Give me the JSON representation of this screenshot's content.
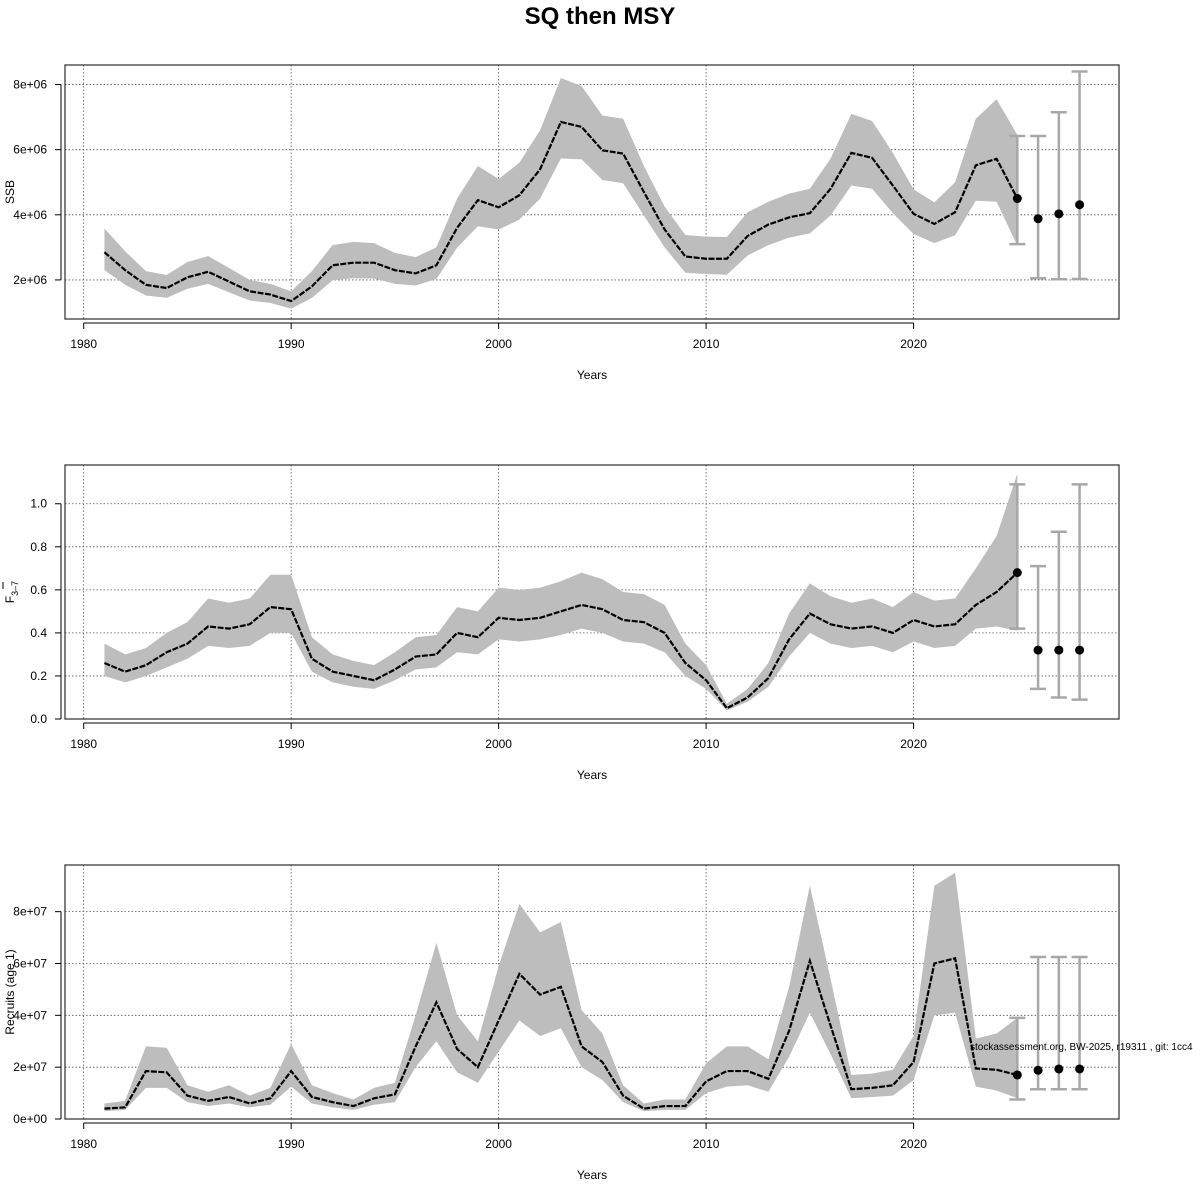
{
  "title": "SQ then MSY",
  "credit": "stockassessment.org, BW-2025, r19311 , git: 1cc4",
  "colors": {
    "band": "#bdbdbd",
    "line": "#000000",
    "errorbar": "#a8a8a8",
    "grid": "#555555"
  },
  "chart_data": [
    {
      "type": "line",
      "ylabel": "SSB",
      "xlabel": "Years",
      "xlim": [
        1980,
        2028
      ],
      "ylim": [
        800000,
        8600000
      ],
      "xticks": [
        1980,
        1990,
        2000,
        2010,
        2020
      ],
      "yticks": [
        2000000,
        4000000,
        6000000,
        8000000
      ],
      "ytick_labels": [
        "2e+06",
        "4e+06",
        "6e+06",
        "8e+06"
      ],
      "grid": true,
      "x": [
        1981,
        1982,
        1983,
        1984,
        1985,
        1986,
        1987,
        1988,
        1989,
        1990,
        1991,
        1992,
        1993,
        1994,
        1995,
        1996,
        1997,
        1998,
        1999,
        2000,
        2001,
        2002,
        2003,
        2004,
        2005,
        2006,
        2007,
        2008,
        2009,
        2010,
        2011,
        2012,
        2013,
        2014,
        2015,
        2016,
        2017,
        2018,
        2019,
        2020,
        2021,
        2022,
        2023,
        2024,
        2025
      ],
      "estimate": [
        2850000,
        2300000,
        1850000,
        1750000,
        2080000,
        2250000,
        1950000,
        1650000,
        1550000,
        1350000,
        1800000,
        2450000,
        2530000,
        2530000,
        2300000,
        2200000,
        2450000,
        3600000,
        4450000,
        4230000,
        4600000,
        5400000,
        6850000,
        6700000,
        5980000,
        5880000,
        4700000,
        3550000,
        2720000,
        2650000,
        2650000,
        3350000,
        3700000,
        3920000,
        4050000,
        4800000,
        5900000,
        5750000,
        4900000,
        4030000,
        3720000,
        4080000,
        5520000,
        5720000,
        4500000
      ],
      "lower": [
        2300000,
        1850000,
        1520000,
        1450000,
        1730000,
        1880000,
        1620000,
        1370000,
        1290000,
        1120000,
        1450000,
        1990000,
        2050000,
        2040000,
        1880000,
        1830000,
        2030000,
        2990000,
        3650000,
        3550000,
        3850000,
        4500000,
        5730000,
        5700000,
        5070000,
        4970000,
        3980000,
        3000000,
        2220000,
        2180000,
        2160000,
        2750000,
        3070000,
        3300000,
        3430000,
        3980000,
        4900000,
        4800000,
        4050000,
        3410000,
        3130000,
        3370000,
        4430000,
        4400000,
        3050000
      ],
      "upper": [
        3580000,
        2880000,
        2270000,
        2150000,
        2550000,
        2730000,
        2370000,
        2000000,
        1880000,
        1650000,
        2270000,
        3070000,
        3170000,
        3130000,
        2830000,
        2700000,
        3000000,
        4500000,
        5500000,
        5100000,
        5600000,
        6600000,
        8200000,
        7950000,
        7050000,
        6950000,
        5500000,
        4250000,
        3380000,
        3330000,
        3320000,
        4080000,
        4400000,
        4650000,
        4800000,
        5730000,
        7100000,
        6880000,
        5900000,
        4780000,
        4380000,
        5000000,
        6950000,
        7550000,
        6450000
      ],
      "projection": {
        "x": [
          2025,
          2026,
          2027,
          2028
        ],
        "median": [
          4500000,
          3880000,
          4030000,
          4310000
        ],
        "lower": [
          3100000,
          2050000,
          2020000,
          2030000
        ],
        "upper": [
          6420000,
          6420000,
          7150000,
          8400000
        ]
      }
    },
    {
      "type": "line",
      "ylabel": "F̅ 3–7",
      "ylabel_main": "F",
      "ylabel_sub": "3–7",
      "xlabel": "Years",
      "xlim": [
        1980,
        2028
      ],
      "ylim": [
        0,
        1.18
      ],
      "xticks": [
        1980,
        1990,
        2000,
        2010,
        2020
      ],
      "yticks": [
        0.0,
        0.2,
        0.4,
        0.6,
        0.8,
        1.0
      ],
      "ytick_labels": [
        "0.0",
        "0.2",
        "0.4",
        "0.6",
        "0.8",
        "1.0"
      ],
      "grid": true,
      "x": [
        1981,
        1982,
        1983,
        1984,
        1985,
        1986,
        1987,
        1988,
        1989,
        1990,
        1991,
        1992,
        1993,
        1994,
        1995,
        1996,
        1997,
        1998,
        1999,
        2000,
        2001,
        2002,
        2003,
        2004,
        2005,
        2006,
        2007,
        2008,
        2009,
        2010,
        2011,
        2012,
        2013,
        2014,
        2015,
        2016,
        2017,
        2018,
        2019,
        2020,
        2021,
        2022,
        2023,
        2024,
        2025
      ],
      "estimate": [
        0.26,
        0.22,
        0.25,
        0.31,
        0.35,
        0.43,
        0.42,
        0.44,
        0.52,
        0.51,
        0.28,
        0.22,
        0.2,
        0.18,
        0.23,
        0.29,
        0.3,
        0.4,
        0.38,
        0.47,
        0.46,
        0.47,
        0.5,
        0.53,
        0.51,
        0.46,
        0.45,
        0.4,
        0.26,
        0.18,
        0.05,
        0.1,
        0.19,
        0.37,
        0.49,
        0.44,
        0.42,
        0.43,
        0.4,
        0.46,
        0.43,
        0.44,
        0.53,
        0.59,
        0.68
      ],
      "lower": [
        0.2,
        0.17,
        0.2,
        0.24,
        0.28,
        0.34,
        0.33,
        0.34,
        0.4,
        0.4,
        0.22,
        0.17,
        0.15,
        0.14,
        0.18,
        0.23,
        0.24,
        0.31,
        0.3,
        0.37,
        0.36,
        0.37,
        0.39,
        0.42,
        0.4,
        0.36,
        0.35,
        0.31,
        0.2,
        0.14,
        0.04,
        0.08,
        0.15,
        0.29,
        0.4,
        0.35,
        0.33,
        0.34,
        0.31,
        0.36,
        0.33,
        0.34,
        0.42,
        0.43,
        0.41
      ],
      "upper": [
        0.35,
        0.3,
        0.33,
        0.4,
        0.45,
        0.56,
        0.54,
        0.56,
        0.67,
        0.67,
        0.38,
        0.3,
        0.27,
        0.25,
        0.31,
        0.38,
        0.39,
        0.52,
        0.5,
        0.61,
        0.6,
        0.61,
        0.64,
        0.68,
        0.65,
        0.59,
        0.58,
        0.53,
        0.35,
        0.25,
        0.07,
        0.14,
        0.26,
        0.49,
        0.63,
        0.57,
        0.54,
        0.56,
        0.52,
        0.59,
        0.55,
        0.56,
        0.7,
        0.85,
        1.14
      ],
      "projection": {
        "x": [
          2025,
          2026,
          2027,
          2028
        ],
        "median": [
          0.68,
          0.32,
          0.32,
          0.32
        ],
        "lower": [
          0.42,
          0.14,
          0.1,
          0.09
        ],
        "upper": [
          1.09,
          0.71,
          0.87,
          1.09
        ]
      }
    },
    {
      "type": "line",
      "ylabel": "Recruits (age 1)",
      "xlabel": "Years",
      "xlim": [
        1980,
        2028
      ],
      "ylim": [
        0,
        98000000
      ],
      "xticks": [
        1980,
        1990,
        2000,
        2010,
        2020
      ],
      "yticks": [
        0,
        20000000,
        40000000,
        60000000,
        80000000
      ],
      "ytick_labels": [
        "0e+00",
        "2e+07",
        "4e+07",
        "6e+07",
        "8e+07"
      ],
      "grid": true,
      "x": [
        1981,
        1982,
        1983,
        1984,
        1985,
        1986,
        1987,
        1988,
        1989,
        1990,
        1991,
        1992,
        1993,
        1994,
        1995,
        1996,
        1997,
        1998,
        1999,
        2000,
        2001,
        2002,
        2003,
        2004,
        2005,
        2006,
        2007,
        2008,
        2009,
        2010,
        2011,
        2012,
        2013,
        2014,
        2015,
        2016,
        2017,
        2018,
        2019,
        2020,
        2021,
        2022,
        2023,
        2024,
        2025
      ],
      "estimate": [
        4000000,
        4500000,
        18500000,
        18000000,
        9000000,
        7000000,
        8500000,
        6000000,
        8000000,
        18500000,
        8500000,
        6500000,
        5000000,
        8000000,
        9500000,
        28000000,
        45000000,
        27000000,
        20000000,
        38000000,
        56000000,
        48000000,
        51000000,
        28000000,
        22000000,
        9000000,
        4000000,
        5000000,
        5000000,
        14500000,
        18500000,
        18500000,
        15500000,
        34000000,
        61000000,
        36000000,
        11500000,
        12000000,
        13000000,
        22000000,
        60000000,
        62000000,
        19500000,
        19000000,
        17000000
      ],
      "lower": [
        3000000,
        3500000,
        12000000,
        12000000,
        6500000,
        5000000,
        6000000,
        4500000,
        5500000,
        12500000,
        6000000,
        4500000,
        3500000,
        5500000,
        6500000,
        20000000,
        30000000,
        18000000,
        14000000,
        26000000,
        38000000,
        32000000,
        35000000,
        20000000,
        15000000,
        6500000,
        3000000,
        3500000,
        3500000,
        10000000,
        12500000,
        13000000,
        10500000,
        24000000,
        41000000,
        25000000,
        8000000,
        8500000,
        9000000,
        15000000,
        40000000,
        41000000,
        12500000,
        11000000,
        8000000
      ],
      "upper": [
        6000000,
        7000000,
        28000000,
        27500000,
        13000000,
        10500000,
        13000000,
        9000000,
        12000000,
        29000000,
        13000000,
        10000000,
        7500000,
        12000000,
        14000000,
        40000000,
        68000000,
        40000000,
        30000000,
        59000000,
        83000000,
        72000000,
        76000000,
        42000000,
        33000000,
        13000000,
        6000000,
        7500000,
        7500000,
        21500000,
        28000000,
        28000000,
        23000000,
        51000000,
        90000000,
        54000000,
        17000000,
        17500000,
        19000000,
        32000000,
        90000000,
        95000000,
        31000000,
        33000000,
        39000000
      ],
      "projection": {
        "x": [
          2025,
          2026,
          2027,
          2028
        ],
        "median": [
          17000000,
          18800000,
          19300000,
          19300000
        ],
        "lower": [
          7500000,
          11500000,
          11500000,
          11500000
        ],
        "upper": [
          39000000,
          62500000,
          62500000,
          62500000
        ]
      }
    }
  ]
}
